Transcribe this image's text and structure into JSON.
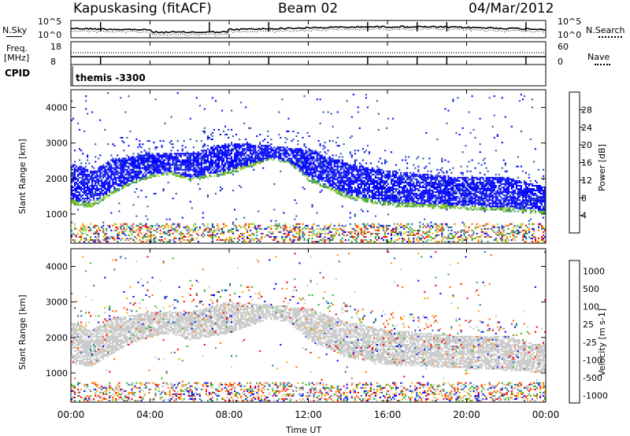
{
  "header": {
    "site": "Kapuskasing (fitACF)",
    "beam": "Beam 02",
    "date": "04/Mar/2012"
  },
  "sky_panel": {
    "left_label": "N.Sky",
    "right_label": "N.Search",
    "left_top": "10^5",
    "left_bottom": "10^0",
    "right_top": "10^5",
    "right_bottom": "10^0"
  },
  "freq_panel": {
    "left_label_1": "Freq.",
    "left_label_2": "[MHz]",
    "left_top": "18",
    "left_bottom": "8",
    "right_label": "Nave",
    "right_top": "60",
    "right_bottom": "0"
  },
  "cpid": {
    "label": "CPID",
    "value": "themis -3300"
  },
  "x_ticks": [
    "00:00",
    "04:00",
    "08:00",
    "12:00",
    "16:00",
    "20:00",
    "00:00"
  ],
  "x_label": "Time UT",
  "colors": {
    "power": [
      "#0000ff",
      "#2850b4",
      "#3c8c6e",
      "#3caa3c",
      "#a0d214",
      "#ffa000",
      "#ff6400",
      "#ff0000"
    ],
    "velocity": [
      "#ff0000",
      "#ff6400",
      "#ffa000",
      "#c8c8c8",
      "#c8c8c8",
      "#28b428",
      "#2864b4",
      "#0000ff"
    ]
  },
  "chart_data": [
    {
      "type": "heatmap",
      "title": "",
      "xlabel": "Time UT",
      "ylabel": "Slant Range [km]",
      "y_ticks": [
        "1000",
        "2000",
        "3000",
        "4000"
      ],
      "ylim": [
        180,
        4500
      ],
      "xlim": [
        0,
        24
      ],
      "colorbar_label": "Power [dB]",
      "colorbar_ticks": [
        "4",
        "8",
        "12",
        "16",
        "20",
        "24",
        "28"
      ],
      "band_lower_km": [
        [
          0,
          1250
        ],
        [
          1,
          1150
        ],
        [
          2,
          1500
        ],
        [
          3,
          1800
        ],
        [
          4,
          2000
        ],
        [
          5,
          2100
        ],
        [
          6,
          1900
        ],
        [
          8,
          2100
        ],
        [
          10,
          2500
        ],
        [
          11,
          2400
        ],
        [
          12,
          1900
        ],
        [
          14,
          1400
        ],
        [
          16,
          1200
        ],
        [
          18,
          1150
        ],
        [
          20,
          1100
        ],
        [
          22,
          1050
        ],
        [
          23.5,
          1000
        ]
      ],
      "band_upper_km": [
        [
          0,
          2400
        ],
        [
          1,
          2200
        ],
        [
          2,
          2500
        ],
        [
          4,
          2700
        ],
        [
          6,
          2700
        ],
        [
          8,
          3000
        ],
        [
          10,
          2900
        ],
        [
          12,
          2800
        ],
        [
          14,
          2400
        ],
        [
          16,
          2200
        ],
        [
          18,
          2100
        ],
        [
          20,
          2000
        ],
        [
          22,
          2000
        ],
        [
          23.5,
          1800
        ]
      ]
    },
    {
      "type": "heatmap",
      "title": "",
      "xlabel": "Time UT",
      "ylabel": "Slant Range [km]",
      "y_ticks": [
        "1000",
        "2000",
        "3000",
        "4000"
      ],
      "ylim": [
        180,
        4500
      ],
      "xlim": [
        0,
        24
      ],
      "colorbar_label": "Velocity [m s-1]",
      "colorbar_ticks": [
        "1000",
        "500",
        "100",
        "25",
        "-25",
        "-100",
        "-500",
        "-1000"
      ]
    }
  ]
}
